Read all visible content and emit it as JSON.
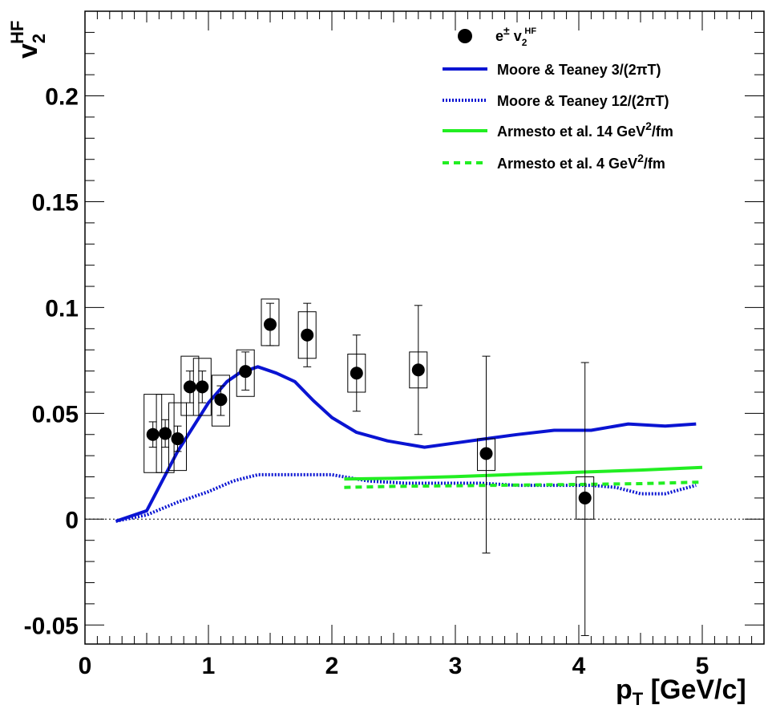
{
  "chart_data": {
    "type": "scatter",
    "xlabel": "p",
    "xlabel_sub": "T",
    "xlabel_unit": " [GeV/c]",
    "ylabel": "v",
    "ylabel_sub": "2",
    "ylabel_sup": "HF",
    "xlim": [
      0,
      5.5
    ],
    "ylim": [
      -0.059,
      0.24
    ],
    "x_ticks": [
      0,
      1,
      2,
      3,
      4,
      5
    ],
    "y_ticks": [
      -0.05,
      0,
      0.05,
      0.1,
      0.15,
      0.2
    ],
    "x_tick_labels": [
      "0",
      "1",
      "2",
      "3",
      "4",
      "5"
    ],
    "y_tick_labels": [
      "-0.05",
      "0",
      "0.05",
      "0.1",
      "0.15",
      "0.2"
    ],
    "zero_line": true,
    "grid": false,
    "legend_position": "top-right",
    "legend": {
      "data": {
        "text": "e",
        "sup": "±",
        "mid": " v",
        "sub": "2",
        "sup2": "HF"
      },
      "moore3": {
        "text": "Moore & Teaney  3/(2πT)"
      },
      "moore12": {
        "text": "Moore & Teaney  12/(2πT)"
      },
      "armesto14": {
        "text": "Armesto et al. 14 GeV",
        "sup": "2",
        "tail": "/fm"
      },
      "armesto4": {
        "text": "Armesto et al. 4 GeV",
        "sup": "2",
        "tail": "/fm"
      }
    },
    "colors": {
      "moore": "#0a14d2",
      "armesto": "#22ee22",
      "data": "#000000"
    },
    "data_points": [
      {
        "x": 0.55,
        "y": 0.04,
        "stat": [
          0.034,
          0.046
        ],
        "sys": [
          0.022,
          0.059
        ]
      },
      {
        "x": 0.65,
        "y": 0.0405,
        "stat": [
          0.034,
          0.047
        ],
        "sys": [
          0.022,
          0.059
        ]
      },
      {
        "x": 0.75,
        "y": 0.038,
        "stat": [
          0.032,
          0.044
        ],
        "sys": [
          0.023,
          0.055
        ]
      },
      {
        "x": 0.85,
        "y": 0.0625,
        "stat": [
          0.055,
          0.07
        ],
        "sys": [
          0.049,
          0.077
        ]
      },
      {
        "x": 0.95,
        "y": 0.0625,
        "stat": [
          0.055,
          0.07
        ],
        "sys": [
          0.049,
          0.076
        ]
      },
      {
        "x": 1.1,
        "y": 0.0565,
        "stat": [
          0.049,
          0.063
        ],
        "sys": [
          0.044,
          0.068
        ]
      },
      {
        "x": 1.3,
        "y": 0.0698,
        "stat": [
          0.061,
          0.079
        ],
        "sys": [
          0.058,
          0.08
        ]
      },
      {
        "x": 1.5,
        "y": 0.092,
        "stat": [
          0.082,
          0.102
        ],
        "sys": [
          0.082,
          0.104
        ]
      },
      {
        "x": 1.8,
        "y": 0.087,
        "stat": [
          0.072,
          0.102
        ],
        "sys": [
          0.076,
          0.098
        ]
      },
      {
        "x": 2.2,
        "y": 0.069,
        "stat": [
          0.051,
          0.087
        ],
        "sys": [
          0.06,
          0.078
        ]
      },
      {
        "x": 2.7,
        "y": 0.0705,
        "stat": [
          0.04,
          0.101
        ],
        "sys": [
          0.062,
          0.079
        ]
      },
      {
        "x": 3.25,
        "y": 0.031,
        "stat": [
          -0.016,
          0.077
        ],
        "sys": [
          0.023,
          0.038
        ]
      },
      {
        "x": 4.05,
        "y": 0.01,
        "stat": [
          -0.055,
          0.074
        ],
        "sys": [
          0.0,
          0.02
        ]
      }
    ],
    "series": [
      {
        "key": "moore3",
        "style": "solid",
        "color": "#0a14d2",
        "width": 4,
        "x": [
          0.25,
          0.5,
          0.75,
          1.0,
          1.15,
          1.25,
          1.4,
          1.55,
          1.7,
          1.85,
          2.0,
          2.2,
          2.45,
          2.75,
          3.0,
          3.25,
          3.5,
          3.8,
          4.1,
          4.4,
          4.7,
          4.95
        ],
        "y": [
          -0.001,
          0.004,
          0.032,
          0.055,
          0.065,
          0.069,
          0.072,
          0.069,
          0.065,
          0.056,
          0.048,
          0.041,
          0.037,
          0.034,
          0.036,
          0.038,
          0.04,
          0.042,
          0.042,
          0.045,
          0.044,
          0.045
        ]
      },
      {
        "key": "moore12",
        "style": "dotted",
        "color": "#0a14d2",
        "width": 4,
        "x": [
          0.25,
          0.5,
          0.75,
          1.0,
          1.2,
          1.4,
          1.6,
          1.8,
          2.0,
          2.3,
          2.6,
          2.9,
          3.2,
          3.5,
          3.8,
          4.1,
          4.3,
          4.5,
          4.7,
          4.95
        ],
        "y": [
          -0.001,
          0.002,
          0.008,
          0.013,
          0.018,
          0.021,
          0.021,
          0.021,
          0.021,
          0.018,
          0.017,
          0.017,
          0.017,
          0.016,
          0.016,
          0.016,
          0.015,
          0.012,
          0.012,
          0.016
        ]
      },
      {
        "key": "armesto14",
        "style": "solid",
        "color": "#22ee22",
        "width": 4,
        "x": [
          2.1,
          2.5,
          3.0,
          3.5,
          4.0,
          4.5,
          5.0
        ],
        "y": [
          0.019,
          0.0193,
          0.0201,
          0.0212,
          0.0222,
          0.0232,
          0.0245
        ]
      },
      {
        "key": "armesto4",
        "style": "dashed",
        "color": "#22ee22",
        "width": 4,
        "x": [
          2.1,
          2.5,
          3.0,
          3.5,
          4.0,
          4.5,
          5.0
        ],
        "y": [
          0.015,
          0.0155,
          0.0158,
          0.0161,
          0.0164,
          0.0168,
          0.0175
        ]
      }
    ]
  }
}
